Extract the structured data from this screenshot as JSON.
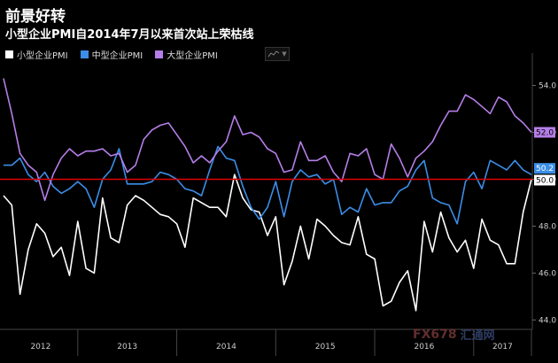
{
  "title": "前景好转",
  "subtitle": "小型企业PMI自2014年7月以来首次站上荣枯线",
  "legend": [
    {
      "label": "小型企业PMI",
      "color": "#ffffff"
    },
    {
      "label": "中型企业PMI",
      "color": "#3b8ee8"
    },
    {
      "label": "大型企业PMI",
      "color": "#b57ee8"
    }
  ],
  "watermark": {
    "main": "FX678",
    "sub": "汇通网"
  },
  "chart_data": {
    "type": "line",
    "title": "小型企业PMI自2014年7月以来首次站上荣枯线",
    "xlabel": "",
    "ylabel": "",
    "ylim": [
      43.6,
      55.0
    ],
    "yticks": [
      "54.0",
      "52.0",
      "50.0",
      "48.0",
      "46.0",
      "44.0"
    ],
    "x_year_labels": [
      "2012",
      "2013",
      "2014",
      "2015",
      "2016",
      "2017"
    ],
    "reference_line": {
      "value": 50.0,
      "label": "50.0",
      "color": "#e00000"
    },
    "end_labels": [
      {
        "series": "大型企业PMI",
        "value": "52.0"
      },
      {
        "series": "中型企业PMI",
        "value": "50.2"
      },
      {
        "series": "小型企业PMI",
        "value": "50.0"
      }
    ],
    "series": [
      {
        "name": "小型企业PMI",
        "color": "#ffffff",
        "values": [
          49.3,
          48.9,
          45.1,
          47.0,
          48.1,
          47.7,
          46.7,
          47.1,
          45.9,
          48.2,
          46.2,
          46.0,
          49.2,
          47.5,
          47.3,
          48.9,
          49.3,
          49.1,
          48.8,
          48.5,
          48.4,
          48.1,
          47.1,
          49.2,
          49.0,
          48.8,
          48.8,
          48.4,
          50.2,
          49.2,
          48.7,
          48.6,
          47.6,
          48.4,
          45.5,
          46.5,
          48.0,
          46.6,
          48.3,
          48.0,
          47.6,
          47.3,
          47.2,
          48.4,
          46.8,
          46.6,
          44.6,
          44.8,
          45.6,
          46.1,
          44.4,
          48.2,
          46.9,
          48.6,
          47.5,
          46.9,
          47.4,
          46.2,
          48.3,
          47.4,
          47.2,
          46.4,
          46.4,
          48.6,
          50.0
        ],
        "end_label": "50.0"
      },
      {
        "name": "中型企业PMI",
        "color": "#3b8ee8",
        "values": [
          50.6,
          50.6,
          50.9,
          50.2,
          49.9,
          50.3,
          49.7,
          49.4,
          49.6,
          49.9,
          49.6,
          48.8,
          50.0,
          50.4,
          51.3,
          49.8,
          49.8,
          49.8,
          49.9,
          50.3,
          50.2,
          50.0,
          49.6,
          49.5,
          49.3,
          50.4,
          51.4,
          50.9,
          50.8,
          49.7,
          48.8,
          48.3,
          48.8,
          49.9,
          48.4,
          49.9,
          50.4,
          50.1,
          50.2,
          49.8,
          50.0,
          48.5,
          48.8,
          48.6,
          49.6,
          48.9,
          49.0,
          49.0,
          49.5,
          49.7,
          50.4,
          50.8,
          49.2,
          49.0,
          48.9,
          48.1,
          49.9,
          50.3,
          49.6,
          50.8,
          50.6,
          50.4,
          50.8,
          50.4,
          50.2
        ],
        "end_label": "50.2"
      },
      {
        "name": "大型企业PMI",
        "color": "#b57ee8",
        "values": [
          54.3,
          52.8,
          51.1,
          50.6,
          50.3,
          49.1,
          50.2,
          50.9,
          51.3,
          51.0,
          51.2,
          51.2,
          51.3,
          51.0,
          51.1,
          50.3,
          50.6,
          51.7,
          52.1,
          52.3,
          52.4,
          51.9,
          51.4,
          50.7,
          51.0,
          50.7,
          51.2,
          51.6,
          52.7,
          51.9,
          52.0,
          51.8,
          51.3,
          51.1,
          50.3,
          50.4,
          51.6,
          50.8,
          50.8,
          51.0,
          50.3,
          49.9,
          51.1,
          51.0,
          51.3,
          50.2,
          50.0,
          51.5,
          50.9,
          50.1,
          50.9,
          51.2,
          51.6,
          52.3,
          52.9,
          52.9,
          53.6,
          53.4,
          53.1,
          52.8,
          53.5,
          53.3,
          52.7,
          52.4,
          52.0
        ],
        "end_label": "52.0"
      }
    ]
  }
}
